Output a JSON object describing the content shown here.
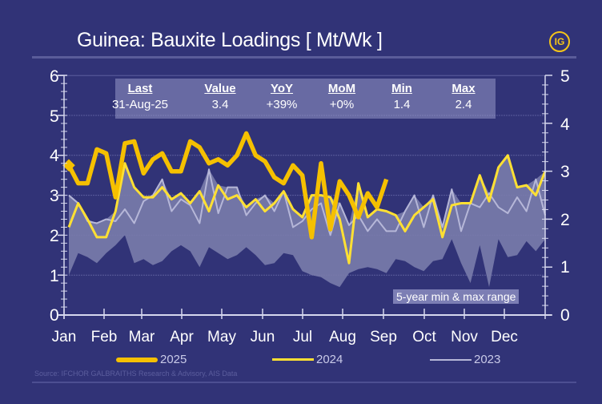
{
  "header": {
    "title": "Guinea: Bauxite Loadings [ Mt/Wk ]",
    "logo": "IG"
  },
  "stats_box": {
    "columns": [
      {
        "header": "Last",
        "value": "31-Aug-25"
      },
      {
        "header": "Value",
        "value": "3.4"
      },
      {
        "header": "YoY",
        "value": "+39%"
      },
      {
        "header": "MoM",
        "value": "+0%"
      },
      {
        "header": "Min",
        "value": "1.4"
      },
      {
        "header": "Max",
        "value": "2.4"
      }
    ]
  },
  "annotation": "5-year min & max range",
  "source": "Source: IFCHOR GALBRAITHS Research & Advisory, AIS Data",
  "colors": {
    "background": "#313377",
    "series_2025": "#f5c000",
    "series_2024": "#ffe033",
    "series_2023": "#b6b7d8",
    "range_band": "#7a7cab"
  },
  "chart_data": {
    "type": "line",
    "title": "Guinea: Bauxite Loadings [ Mt/Wk ]",
    "xlabel": "",
    "ylabel": "Mt/Wk",
    "ylim": [
      0,
      6
    ],
    "y2lim": [
      0,
      5
    ],
    "yticks": [
      0,
      1,
      2,
      3,
      4,
      5,
      6
    ],
    "y2ticks": [
      0,
      1,
      2,
      3,
      4,
      5
    ],
    "x_tick_labels": [
      "Jan",
      "Feb",
      "Mar",
      "Apr",
      "May",
      "Jun",
      "Jul",
      "Aug",
      "Sep",
      "Oct",
      "Nov",
      "Dec"
    ],
    "x_unit": "week of year (1-52)",
    "grid": true,
    "legend_position": "bottom",
    "series": [
      {
        "name": "2025",
        "style": "thick gold line, diamond marker at start",
        "values": [
          3.75,
          3.3,
          3.3,
          4.15,
          4.05,
          2.95,
          4.3,
          4.35,
          3.55,
          3.9,
          4.05,
          3.6,
          3.6,
          4.35,
          4.2,
          3.8,
          3.9,
          3.75,
          4.0,
          4.55,
          4.0,
          3.85,
          3.45,
          3.3,
          3.75,
          3.5,
          1.95,
          3.8,
          2.15,
          3.35,
          3.0,
          2.45,
          3.05,
          2.7,
          3.4
        ]
      },
      {
        "name": "2024",
        "style": "thin yellow line",
        "values": [
          2.2,
          2.8,
          2.4,
          1.95,
          1.95,
          2.6,
          3.8,
          3.2,
          2.95,
          2.95,
          3.2,
          2.9,
          3.05,
          2.8,
          3.1,
          2.6,
          3.25,
          2.9,
          3.0,
          2.7,
          2.9,
          2.6,
          2.8,
          3.1,
          2.65,
          2.45,
          3.0,
          3.0,
          2.95,
          2.4,
          1.3,
          3.3,
          2.45,
          2.65,
          2.6,
          2.5,
          2.1,
          2.5,
          2.7,
          2.9,
          1.95,
          2.75,
          2.8,
          2.8,
          3.5,
          2.85,
          3.7,
          4.0,
          3.2,
          3.25,
          3.0,
          3.6
        ]
      },
      {
        "name": "2023",
        "style": "thin light grey line",
        "values": [
          3.0,
          2.8,
          2.35,
          2.3,
          2.4,
          2.35,
          2.65,
          2.3,
          2.85,
          3.0,
          3.4,
          2.6,
          2.9,
          2.75,
          2.3,
          3.65,
          2.55,
          3.2,
          3.2,
          2.5,
          2.8,
          3.0,
          2.6,
          3.1,
          2.2,
          2.35,
          2.65,
          2.8,
          2.0,
          2.8,
          2.25,
          2.5,
          2.1,
          2.4,
          2.1,
          2.1,
          2.6,
          3.0,
          2.2,
          3.0,
          2.2,
          3.15,
          2.1,
          2.8,
          2.7,
          3.05,
          2.7,
          2.55,
          2.95,
          2.6,
          3.4,
          2.5
        ]
      },
      {
        "name": "5-year min",
        "style": "band lower edge",
        "values": [
          1.0,
          1.55,
          1.45,
          1.3,
          1.55,
          1.75,
          2.0,
          1.3,
          1.4,
          1.25,
          1.35,
          1.6,
          1.75,
          1.6,
          1.2,
          1.7,
          1.55,
          1.4,
          1.5,
          1.7,
          1.5,
          1.25,
          1.3,
          1.55,
          1.5,
          1.1,
          1.0,
          0.95,
          0.8,
          0.7,
          1.05,
          1.15,
          1.2,
          1.15,
          1.05,
          1.4,
          1.35,
          1.2,
          1.1,
          1.35,
          1.4,
          1.9,
          1.3,
          0.8,
          1.75,
          0.7,
          1.9,
          1.45,
          1.5,
          1.85,
          1.6,
          1.9
        ]
      },
      {
        "name": "5-year max",
        "style": "band upper edge",
        "values": [
          3.0,
          2.8,
          2.4,
          2.3,
          2.4,
          2.6,
          3.8,
          3.2,
          2.95,
          3.0,
          3.4,
          2.9,
          3.05,
          2.8,
          3.1,
          3.65,
          3.25,
          3.2,
          3.2,
          2.7,
          2.9,
          3.0,
          2.8,
          3.1,
          2.65,
          2.45,
          3.0,
          3.0,
          2.95,
          2.8,
          2.25,
          3.3,
          2.45,
          2.65,
          2.6,
          2.5,
          2.6,
          3.0,
          2.7,
          3.0,
          2.2,
          3.15,
          2.8,
          2.8,
          3.5,
          3.05,
          3.7,
          4.0,
          3.2,
          3.25,
          3.4,
          3.6
        ]
      }
    ],
    "legend": [
      "2025",
      "2024",
      "2023"
    ],
    "annotations": [
      "5-year min & max range"
    ],
    "stats": {
      "last": "31-Aug-25",
      "value": 3.4,
      "yoy": "+39%",
      "mom": "+0%",
      "min": 1.4,
      "max": 2.4
    }
  }
}
